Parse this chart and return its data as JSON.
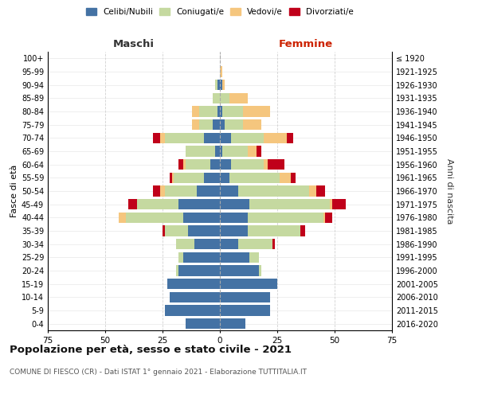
{
  "age_groups": [
    "0-4",
    "5-9",
    "10-14",
    "15-19",
    "20-24",
    "25-29",
    "30-34",
    "35-39",
    "40-44",
    "45-49",
    "50-54",
    "55-59",
    "60-64",
    "65-69",
    "70-74",
    "75-79",
    "80-84",
    "85-89",
    "90-94",
    "95-99",
    "100+"
  ],
  "birth_years": [
    "2016-2020",
    "2011-2015",
    "2006-2010",
    "2001-2005",
    "1996-2000",
    "1991-1995",
    "1986-1990",
    "1981-1985",
    "1976-1980",
    "1971-1975",
    "1966-1970",
    "1961-1965",
    "1956-1960",
    "1951-1955",
    "1946-1950",
    "1941-1945",
    "1936-1940",
    "1931-1935",
    "1926-1930",
    "1921-1925",
    "≤ 1920"
  ],
  "males": {
    "celibi": [
      15,
      24,
      22,
      23,
      18,
      16,
      11,
      14,
      16,
      18,
      10,
      7,
      4,
      2,
      7,
      3,
      1,
      0,
      1,
      0,
      0
    ],
    "coniugati": [
      0,
      0,
      0,
      0,
      1,
      2,
      8,
      10,
      25,
      18,
      14,
      13,
      11,
      13,
      17,
      6,
      8,
      3,
      1,
      0,
      0
    ],
    "vedovi": [
      0,
      0,
      0,
      0,
      0,
      0,
      0,
      0,
      3,
      0,
      2,
      1,
      1,
      0,
      2,
      3,
      3,
      0,
      0,
      0,
      0
    ],
    "divorziati": [
      0,
      0,
      0,
      0,
      0,
      0,
      0,
      1,
      0,
      4,
      3,
      1,
      2,
      0,
      3,
      0,
      0,
      0,
      0,
      0,
      0
    ]
  },
  "females": {
    "celibi": [
      11,
      22,
      22,
      25,
      17,
      13,
      8,
      12,
      12,
      13,
      8,
      4,
      5,
      1,
      5,
      2,
      1,
      0,
      1,
      0,
      0
    ],
    "coniugati": [
      0,
      0,
      0,
      0,
      1,
      4,
      15,
      23,
      33,
      35,
      31,
      22,
      14,
      11,
      14,
      8,
      9,
      4,
      0,
      0,
      0
    ],
    "vedovi": [
      0,
      0,
      0,
      0,
      0,
      0,
      0,
      0,
      1,
      1,
      3,
      5,
      2,
      4,
      10,
      8,
      12,
      8,
      1,
      1,
      0
    ],
    "divorziati": [
      0,
      0,
      0,
      0,
      0,
      0,
      1,
      2,
      3,
      6,
      4,
      2,
      7,
      2,
      3,
      0,
      0,
      0,
      0,
      0,
      0
    ]
  },
  "color_celibi": "#4472a4",
  "color_coniugati": "#c5d9a0",
  "color_vedovi": "#f5c67e",
  "color_divorziati": "#c0001a",
  "title": "Popolazione per età, sesso e stato civile - 2021",
  "subtitle": "COMUNE DI FIESCO (CR) - Dati ISTAT 1° gennaio 2021 - Elaborazione TUTTITALIA.IT",
  "xlabel_left": "Maschi",
  "xlabel_right": "Femmine",
  "ylabel_left": "Fasce di età",
  "ylabel_right": "Anni di nascita",
  "xlim": 75,
  "bg_color": "#ffffff",
  "grid_color": "#cccccc",
  "bar_height": 0.8
}
